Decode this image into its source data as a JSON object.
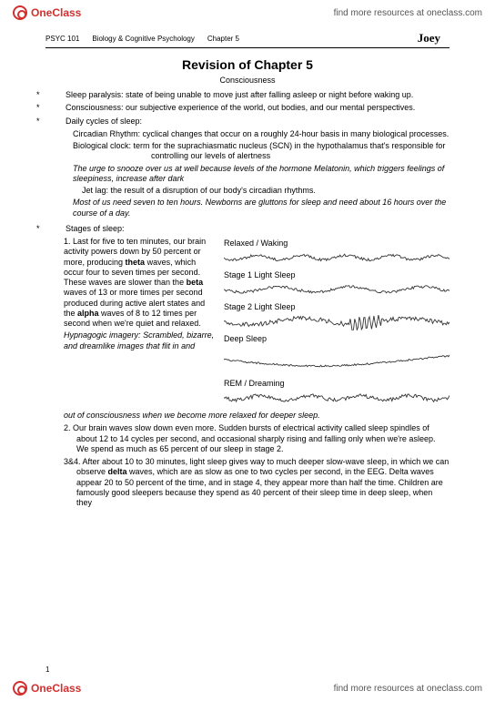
{
  "brand": {
    "name": "OneClass",
    "tagline": "find more resources at oneclass.com"
  },
  "course": {
    "code": "PSYC 101",
    "subject": "Biology & Cognitive Psychology",
    "chapter": "Chapter 5",
    "author": "Joey"
  },
  "title": "Revision of Chapter 5",
  "subtitle": "Consciousness",
  "defs": {
    "sleep_paralysis": "Sleep paralysis: state of being unable to move just after falling asleep or night before waking up.",
    "consciousness": "Consciousness: our subjective experience of the world, out bodies, and our mental perspectives.",
    "daily": "Daily cycles of sleep:",
    "circadian_label": "Circadian Rhythm:",
    "circadian_text": "cyclical changes that occur on a roughly 24-hour basis in many biological processes.",
    "bioclock_label": "Biological clock:",
    "bioclock_text": "term for the suprachiasmatic nucleus (SCN) in the hypothalamus that's responsible for controlling our levels of alertness",
    "melatonin": "The urge to snooze over us at well because levels of the hormone Melatonin, which triggers feelings of sleepiness, increase after dark",
    "jetlag": "Jet lag: the result of a disruption of our body's circadian rhythms.",
    "hours": "Most of us need seven to ten hours. Newborns are gluttons for sleep and need about 16 hours over the course of a day."
  },
  "stages_header": "Stages of sleep:",
  "stage1_left": {
    "p1a": "1. Last for five to ten minutes, our brain activity powers down by 50 percent or more, producing ",
    "theta": "theta",
    "p1b": " waves, which occur four to seven times per second. These waves are slower than the ",
    "beta": "beta",
    "p1c": " waves of 13 or more times per second produced during active alert states and the ",
    "alpha": "alpha",
    "p1d": " waves of 8 to 12 times per second when we're quiet and relaxed.",
    "hyp_label": "Hypnagogic imagery:",
    "hyp_text": "Scrambled, bizarre, and dreamlike images that flit in and"
  },
  "wave_labels": {
    "relaxed": "Relaxed / Waking",
    "s1": "Stage 1 Light Sleep",
    "s2": "Stage 2 Light Sleep",
    "deep": "Deep Sleep",
    "rem": "REM / Dreaming"
  },
  "after_col": "out of consciousness when we become more relaxed for deeper sleep.",
  "stage2": "2. Our brain waves slow down even more. Sudden bursts of electrical activity called sleep spindles of about 12 to 14 cycles per second, and occasional sharply rising and falling only when we're asleep. We spend as much as 65 percent of our sleep in stage 2.",
  "stage34a": "3&4. After about 10 to 30 minutes, light sleep gives way to much deeper slow-wave sleep, in which we can observe ",
  "delta": "delta",
  "stage34b": " waves, which are as slow as one to two cycles per second, in the EEG. Delta waves appear 20 to 50 percent of the time, and in stage 4, they appear more than half the time. Children are famously good sleepers because they spend as 40 percent of their sleep time in deep sleep, when they",
  "page": "1",
  "waves": {
    "color": "#333333",
    "relaxed": {
      "freq": 42,
      "amp": 5,
      "jitter": 3
    },
    "s1": {
      "freq": 26,
      "amp": 6,
      "jitter": 3
    },
    "s2": {
      "freq": 18,
      "amp": 7,
      "jitter": 5,
      "spindle": true
    },
    "deep": {
      "freq": 5,
      "amp": 14,
      "jitter": 2
    },
    "rem": {
      "freq": 38,
      "amp": 5,
      "jitter": 4
    }
  }
}
